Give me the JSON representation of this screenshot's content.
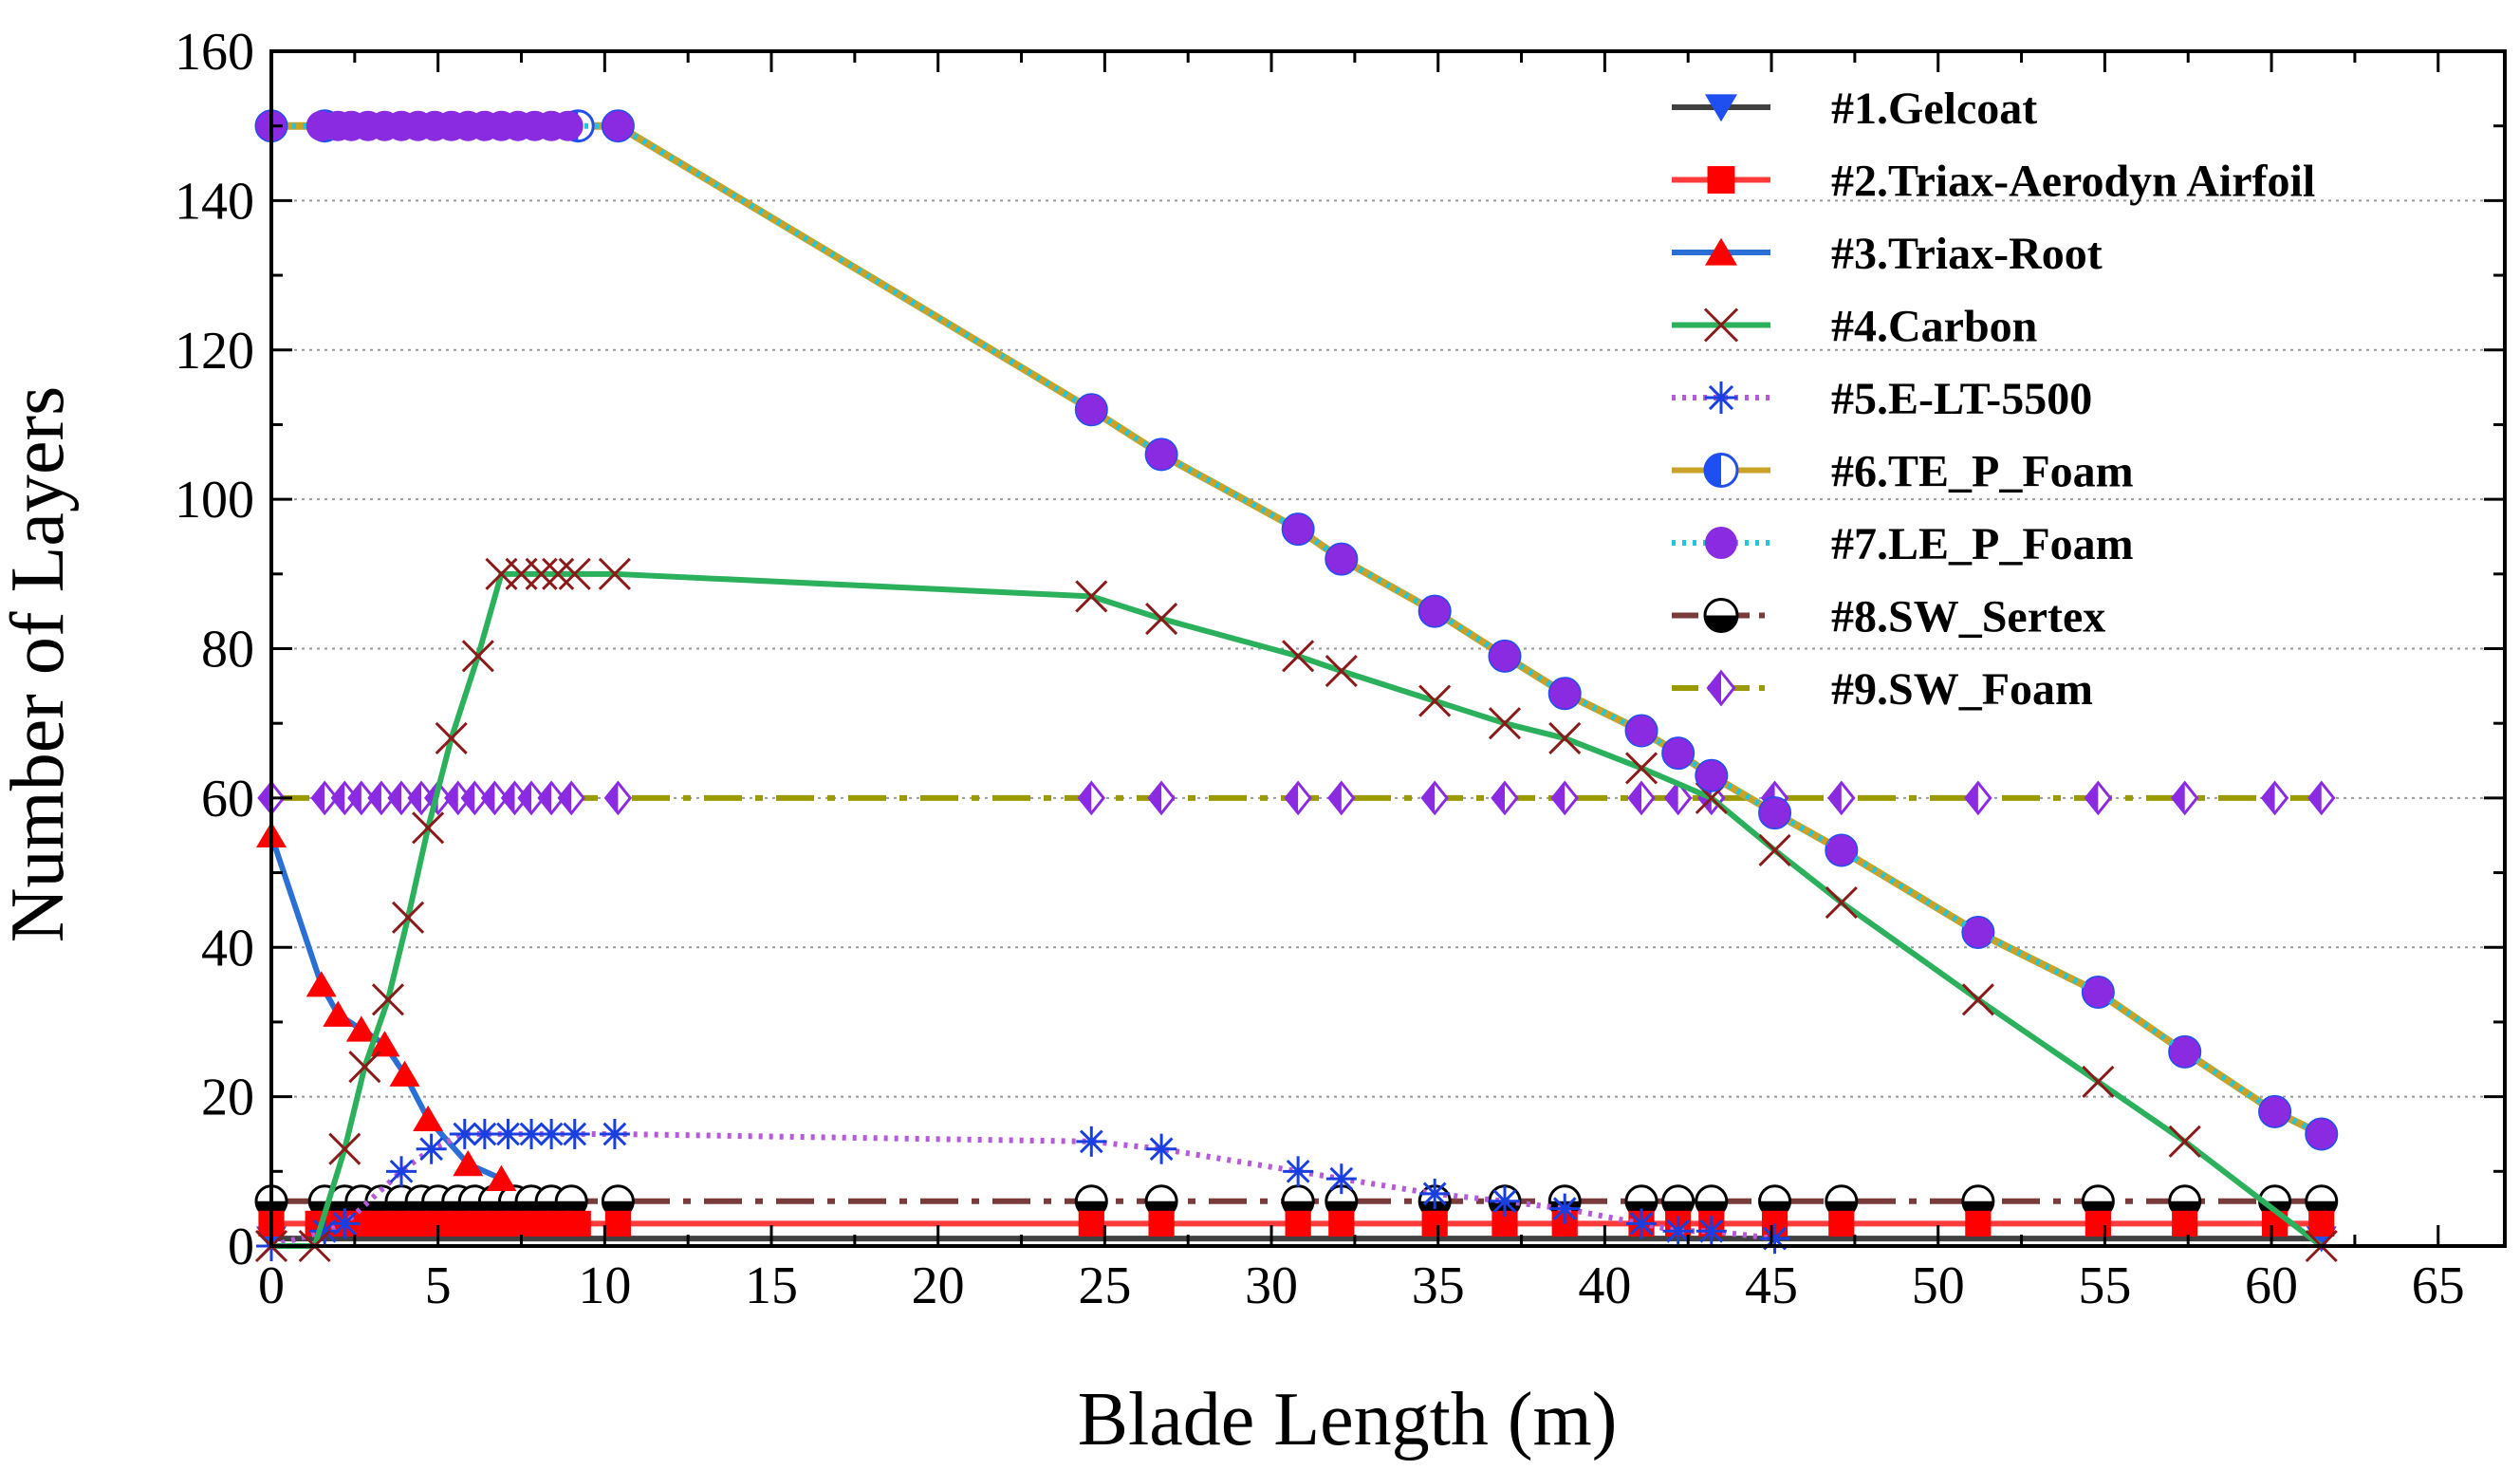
{
  "chart_data": {
    "type": "line",
    "title": "",
    "xlabel": "Blade Length  (m)",
    "ylabel": "Number of  Layers",
    "xlim": [
      0,
      67
    ],
    "ylim": [
      0,
      160
    ],
    "xticks": [
      0,
      5,
      10,
      15,
      20,
      25,
      30,
      35,
      40,
      45,
      50,
      55,
      60,
      65
    ],
    "yticks": [
      0,
      20,
      40,
      60,
      80,
      100,
      120,
      140,
      160
    ],
    "grid": "horizontal-dotted",
    "legend_position": "top-right",
    "series": [
      {
        "name": "#1.Gelcoat",
        "color": "#404040",
        "line_style": "solid",
        "marker": "triangle-down",
        "marker_color": "#1f4ff0",
        "marker_fill": "full",
        "x": [
          0,
          61.5
        ],
        "y": [
          1,
          1
        ]
      },
      {
        "name": "#2.Triax-Aerodyn Airfoil",
        "color": "#ff3b3b",
        "line_style": "solid",
        "marker": "square",
        "marker_color": "#ff0000",
        "marker_fill": "full",
        "x": [
          0,
          1.4,
          2.0,
          2.6,
          3.2,
          3.8,
          4.4,
          5.0,
          5.6,
          6.2,
          6.8,
          7.4,
          8.0,
          8.6,
          9.2,
          10.4,
          24.6,
          26.7,
          30.8,
          32.1,
          34.9,
          37.0,
          38.8,
          41.1,
          42.2,
          43.2,
          45.1,
          47.1,
          51.2,
          54.8,
          57.4,
          60.1,
          61.5
        ],
        "y": [
          3,
          3,
          3,
          3,
          3,
          3,
          3,
          3,
          3,
          3,
          3,
          3,
          3,
          3,
          3,
          3,
          3,
          3,
          3,
          3,
          3,
          3,
          3,
          3,
          3,
          3,
          3,
          3,
          3,
          3,
          3,
          3,
          3
        ]
      },
      {
        "name": "#3.Triax-Root",
        "color": "#2a6fd6",
        "line_style": "solid",
        "marker": "triangle-up",
        "marker_color": "#ff0000",
        "marker_fill": "full",
        "x": [
          0,
          1.5,
          2.0,
          2.7,
          3.4,
          4.0,
          4.7,
          5.9,
          6.9
        ],
        "y": [
          55,
          35,
          31,
          29,
          27,
          23,
          17,
          11,
          9
        ]
      },
      {
        "name": "#4.Carbon",
        "color": "#2bb05b",
        "line_style": "solid",
        "marker": "x",
        "marker_color": "#8b1a1a",
        "marker_fill": "none",
        "x": [
          0,
          1.3,
          2.2,
          2.8,
          3.5,
          4.1,
          4.7,
          5.4,
          6.2,
          6.9,
          7.5,
          8.1,
          8.6,
          9.1,
          10.3,
          24.6,
          26.7,
          30.8,
          32.1,
          34.9,
          37.0,
          38.8,
          41.1,
          43.2,
          45.1,
          47.1,
          51.2,
          54.8,
          57.4,
          61.5
        ],
        "y": [
          0,
          0,
          13,
          24,
          33,
          44,
          56,
          68,
          79,
          90,
          90,
          90,
          90,
          90,
          90,
          87,
          84,
          79,
          77,
          73,
          70,
          68,
          64,
          60,
          53,
          46,
          33,
          22,
          14,
          0
        ]
      },
      {
        "name": "#5.E-LT-5500",
        "color": "#b55ad8",
        "line_style": "dotted",
        "marker": "asterisk",
        "marker_color": "#1a3fe0",
        "marker_fill": "none",
        "x": [
          0,
          1.6,
          2.2,
          3.9,
          4.8,
          5.8,
          6.4,
          7.1,
          7.8,
          8.4,
          9.1,
          10.3,
          24.6,
          26.7,
          30.8,
          32.1,
          34.9,
          37.0,
          38.8,
          41.1,
          42.2,
          43.2,
          45.1
        ],
        "y": [
          0,
          2,
          3,
          10,
          13,
          15,
          15,
          15,
          15,
          15,
          15,
          15,
          14,
          13,
          10,
          9,
          7,
          6,
          5,
          3,
          2,
          2,
          1
        ]
      },
      {
        "name": "#6.TE_P_Foam",
        "color": "#c9a227",
        "line_style": "solid",
        "marker": "half-circle",
        "marker_color": "#1f4ff0",
        "marker_fill": "left",
        "x": [
          0,
          1.6,
          9.2,
          10.4,
          24.6,
          26.7,
          30.8,
          32.1,
          34.9,
          37.0,
          38.8,
          41.1,
          42.2,
          43.2,
          45.1,
          47.1,
          51.2,
          54.8,
          57.4,
          60.1,
          61.5
        ],
        "y": [
          150,
          150,
          150,
          150,
          112,
          106,
          96,
          92,
          85,
          79,
          74,
          69,
          66,
          63,
          58,
          53,
          42,
          34,
          26,
          18,
          15
        ]
      },
      {
        "name": "#7.LE_P_Foam",
        "color": "#22c6d8",
        "line_style": "dotted",
        "marker": "circle",
        "marker_color": "#8a2be2",
        "marker_fill": "full",
        "x": [
          0,
          1.5,
          2.0,
          2.4,
          2.9,
          3.4,
          3.9,
          4.4,
          4.9,
          5.4,
          5.9,
          6.4,
          6.9,
          7.4,
          7.9,
          8.4,
          8.9,
          10.4,
          24.6,
          26.7,
          30.8,
          32.1,
          34.9,
          37.0,
          38.8,
          41.1,
          42.2,
          43.2,
          45.1,
          47.1,
          51.2,
          54.8,
          57.4,
          60.1,
          61.5
        ],
        "y": [
          150,
          150,
          150,
          150,
          150,
          150,
          150,
          150,
          150,
          150,
          150,
          150,
          150,
          150,
          150,
          150,
          150,
          150,
          112,
          106,
          96,
          92,
          85,
          79,
          74,
          69,
          66,
          63,
          58,
          53,
          42,
          34,
          26,
          18,
          15
        ]
      },
      {
        "name": "#8.SW_Sertex",
        "color": "#7a3b3b",
        "line_style": "dashdot",
        "marker": "half-circle-bottom",
        "marker_color": "#000000",
        "marker_fill": "bottom",
        "x": [
          0,
          1.6,
          2.2,
          2.7,
          3.3,
          3.9,
          4.5,
          5.0,
          5.6,
          6.1,
          6.7,
          7.3,
          7.8,
          8.4,
          9.0,
          10.4,
          24.6,
          26.7,
          30.8,
          32.1,
          34.9,
          37.0,
          38.8,
          41.1,
          42.2,
          43.2,
          45.1,
          47.1,
          51.2,
          54.8,
          57.4,
          60.1,
          61.5
        ],
        "y": [
          6,
          6,
          6,
          6,
          6,
          6,
          6,
          6,
          6,
          6,
          6,
          6,
          6,
          6,
          6,
          6,
          6,
          6,
          6,
          6,
          6,
          6,
          6,
          6,
          6,
          6,
          6,
          6,
          6,
          6,
          6,
          6,
          6
        ]
      },
      {
        "name": "#9.SW_Foam",
        "color": "#9a9a00",
        "line_style": "dashdot",
        "marker": "diamond-half",
        "marker_color": "#8a2be2",
        "marker_fill": "left",
        "x": [
          0,
          1.6,
          2.2,
          2.7,
          3.3,
          3.9,
          4.5,
          5.0,
          5.6,
          6.1,
          6.7,
          7.3,
          7.8,
          8.4,
          9.0,
          10.4,
          24.6,
          26.7,
          30.8,
          32.1,
          34.9,
          37.0,
          38.8,
          41.1,
          42.2,
          43.2,
          45.1,
          47.1,
          51.2,
          54.8,
          57.4,
          60.1,
          61.5
        ],
        "y": [
          60,
          60,
          60,
          60,
          60,
          60,
          60,
          60,
          60,
          60,
          60,
          60,
          60,
          60,
          60,
          60,
          60,
          60,
          60,
          60,
          60,
          60,
          60,
          60,
          60,
          60,
          60,
          60,
          60,
          60,
          60,
          60,
          60
        ]
      }
    ]
  }
}
